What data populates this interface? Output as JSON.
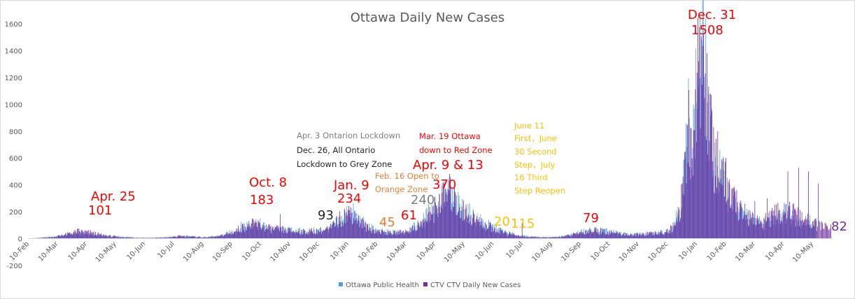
{
  "chart_data": {
    "type": "bar",
    "title": "Ottawa Daily New Cases",
    "xlabel": "",
    "ylabel": "",
    "ylim": [
      -200,
      1600
    ],
    "y_ticks": [
      "-200",
      "0",
      "200",
      "400",
      "600",
      "800",
      "1000",
      "1200",
      "1400",
      "1600"
    ],
    "x_ticks": [
      "10-Feb",
      "10-Mar",
      "10-Apr",
      "10-May",
      "10-Jun",
      "10-Jul",
      "10-Aug",
      "10-Sep",
      "10-Oct",
      "10-Nov",
      "10-Dec",
      "10-Jan",
      "10-Feb",
      "10-Mar",
      "10-Apr",
      "10-May",
      "10-Jun",
      "10-Jul",
      "10-Aug",
      "10-Sep",
      "10-Oct",
      "10-Nov",
      "10-Dec",
      "10-Jan",
      "10-Feb",
      "10-Mar",
      "10-Apr",
      "10-May"
    ],
    "grid": false,
    "legend_position": "bottom",
    "series": [
      {
        "name": "Ottawa Public Health",
        "color": "#5b9bd5",
        "profile": [
          [
            0,
            2
          ],
          [
            15,
            6
          ],
          [
            30,
            14
          ],
          [
            45,
            28
          ],
          [
            60,
            40
          ],
          [
            75,
            35
          ],
          [
            90,
            22
          ],
          [
            110,
            12
          ],
          [
            130,
            8
          ],
          [
            150,
            6
          ],
          [
            170,
            10
          ],
          [
            185,
            18
          ],
          [
            200,
            14
          ],
          [
            215,
            10
          ],
          [
            230,
            18
          ],
          [
            245,
            45
          ],
          [
            260,
            95
          ],
          [
            275,
            120
          ],
          [
            290,
            80
          ],
          [
            305,
            70
          ],
          [
            320,
            60
          ],
          [
            335,
            55
          ],
          [
            350,
            60
          ],
          [
            365,
            75
          ],
          [
            380,
            150
          ],
          [
            390,
            210
          ],
          [
            400,
            150
          ],
          [
            410,
            90
          ],
          [
            425,
            55
          ],
          [
            440,
            45
          ],
          [
            455,
            55
          ],
          [
            470,
            90
          ],
          [
            480,
            140
          ],
          [
            490,
            230
          ],
          [
            500,
            300
          ],
          [
            510,
            330
          ],
          [
            520,
            250
          ],
          [
            535,
            180
          ],
          [
            550,
            120
          ],
          [
            565,
            80
          ],
          [
            580,
            45
          ],
          [
            595,
            22
          ],
          [
            610,
            14
          ],
          [
            625,
            10
          ],
          [
            640,
            12
          ],
          [
            655,
            25
          ],
          [
            670,
            50
          ],
          [
            685,
            65
          ],
          [
            700,
            55
          ],
          [
            715,
            40
          ],
          [
            730,
            30
          ],
          [
            745,
            35
          ],
          [
            760,
            40
          ],
          [
            770,
            50
          ],
          [
            780,
            80
          ],
          [
            790,
            250
          ],
          [
            795,
            500
          ],
          [
            800,
            850
          ],
          [
            805,
            700
          ],
          [
            810,
            1100
          ],
          [
            815,
            1450
          ],
          [
            820,
            1300
          ],
          [
            825,
            800
          ],
          [
            830,
            600
          ],
          [
            840,
            450
          ],
          [
            850,
            320
          ],
          [
            860,
            220
          ],
          [
            870,
            170
          ],
          [
            880,
            130
          ],
          [
            890,
            110
          ],
          [
            900,
            150
          ],
          [
            910,
            180
          ],
          [
            920,
            200
          ],
          [
            930,
            150
          ],
          [
            940,
            130
          ],
          [
            950,
            120
          ]
        ]
      },
      {
        "name": "CTV CTV Daily New Cases",
        "color": "#7030a0",
        "profile": [
          [
            0,
            1
          ],
          [
            15,
            5
          ],
          [
            30,
            12
          ],
          [
            45,
            30
          ],
          [
            60,
            55
          ],
          [
            75,
            45
          ],
          [
            90,
            25
          ],
          [
            110,
            12
          ],
          [
            130,
            6
          ],
          [
            150,
            5
          ],
          [
            170,
            9
          ],
          [
            185,
            20
          ],
          [
            200,
            14
          ],
          [
            215,
            9
          ],
          [
            230,
            16
          ],
          [
            245,
            40
          ],
          [
            260,
            85
          ],
          [
            275,
            110
          ],
          [
            290,
            75
          ],
          [
            305,
            65
          ],
          [
            320,
            55
          ],
          [
            335,
            50
          ],
          [
            350,
            55
          ],
          [
            365,
            70
          ],
          [
            380,
            160
          ],
          [
            390,
            200
          ],
          [
            400,
            140
          ],
          [
            410,
            80
          ],
          [
            425,
            50
          ],
          [
            440,
            40
          ],
          [
            455,
            50
          ],
          [
            470,
            85
          ],
          [
            480,
            130
          ],
          [
            490,
            200
          ],
          [
            500,
            290
          ],
          [
            510,
            340
          ],
          [
            520,
            240
          ],
          [
            535,
            170
          ],
          [
            550,
            110
          ],
          [
            565,
            70
          ],
          [
            580,
            40
          ],
          [
            595,
            18
          ],
          [
            610,
            12
          ],
          [
            625,
            8
          ],
          [
            640,
            10
          ],
          [
            655,
            22
          ],
          [
            670,
            45
          ],
          [
            685,
            60
          ],
          [
            700,
            50
          ],
          [
            715,
            38
          ],
          [
            730,
            28
          ],
          [
            745,
            32
          ],
          [
            760,
            38
          ],
          [
            770,
            48
          ],
          [
            780,
            75
          ],
          [
            790,
            230
          ],
          [
            795,
            480
          ],
          [
            800,
            820
          ],
          [
            805,
            720
          ],
          [
            810,
            1050
          ],
          [
            815,
            1480
          ],
          [
            820,
            1350
          ],
          [
            825,
            820
          ],
          [
            830,
            620
          ],
          [
            840,
            460
          ],
          [
            850,
            330
          ],
          [
            860,
            230
          ],
          [
            870,
            180
          ],
          [
            880,
            140
          ],
          [
            890,
            120
          ],
          [
            900,
            160
          ],
          [
            910,
            200
          ],
          [
            920,
            220
          ],
          [
            930,
            170
          ],
          [
            940,
            140
          ],
          [
            950,
            110
          ],
          [
            960,
            90
          ],
          [
            970,
            82
          ]
        ],
        "spikes": [
          [
            305,
            183
          ],
          [
            372,
            93
          ],
          [
            390,
            234
          ],
          [
            400,
            170
          ],
          [
            452,
            45
          ],
          [
            470,
            61
          ],
          [
            490,
            240
          ],
          [
            508,
            370
          ],
          [
            580,
            20
          ],
          [
            598,
            115
          ],
          [
            693,
            79
          ],
          [
            815,
            1508
          ],
          [
            820,
            1230
          ],
          [
            828,
            950
          ],
          [
            835,
            800
          ],
          [
            845,
            600
          ],
          [
            880,
            280
          ],
          [
            895,
            300
          ],
          [
            920,
            500
          ],
          [
            933,
            530
          ],
          [
            945,
            500
          ],
          [
            957,
            410
          ],
          [
            965,
            120
          ]
        ]
      }
    ],
    "annotations": [
      {
        "text": "Apr. 25",
        "color": "#ff0000",
        "size": "big"
      },
      {
        "text": "101",
        "color": "#ff0000",
        "size": "big"
      },
      {
        "text": "Oct. 8",
        "color": "#ff0000",
        "size": "big"
      },
      {
        "text": "183",
        "color": "#ff0000",
        "size": "big"
      },
      {
        "text": "93",
        "color": "#262626",
        "size": "big"
      },
      {
        "text": "Jan. 9",
        "color": "#ff0000",
        "size": "big"
      },
      {
        "text": "234",
        "color": "#ff0000",
        "size": "big"
      },
      {
        "text": "Apr. 3 Ontarion Lockdown",
        "color": "#7f7f7f",
        "size": "small"
      },
      {
        "text": "Dec. 26, All Ontario",
        "color": "#262626",
        "size": "small"
      },
      {
        "text": "Lockdown to Grey Zone",
        "color": "#262626",
        "size": "small"
      },
      {
        "text": "Feb. 16 Open to",
        "color": "#ed7d31",
        "size": "small"
      },
      {
        "text": "Orange Zone",
        "color": "#ed7d31",
        "size": "small"
      },
      {
        "text": "45",
        "color": "#ed7d31",
        "size": "big"
      },
      {
        "text": "61",
        "color": "#ff0000",
        "size": "big"
      },
      {
        "text": "240",
        "color": "#7f7f7f",
        "size": "big"
      },
      {
        "text": "Mar. 19 Ottawa",
        "color": "#ff0000",
        "size": "small"
      },
      {
        "text": "down to Red Zone",
        "color": "#ff0000",
        "size": "small"
      },
      {
        "text": "Apr. 9 & 13",
        "color": "#ff0000",
        "size": "big"
      },
      {
        "text": "370",
        "color": "#ff0000",
        "size": "big"
      },
      {
        "text": "20",
        "color": "#ffc000",
        "size": "big"
      },
      {
        "text": "115",
        "color": "#ffc000",
        "size": "big"
      },
      {
        "text": "June 11",
        "color": "#ffc000",
        "size": "small"
      },
      {
        "text": "First，June",
        "color": "#ffc000",
        "size": "small"
      },
      {
        "text": "30 Second",
        "color": "#ffc000",
        "size": "small"
      },
      {
        "text": "Step，July",
        "color": "#ffc000",
        "size": "small"
      },
      {
        "text": "16 Third",
        "color": "#ffc000",
        "size": "small"
      },
      {
        "text": "Step Reopen",
        "color": "#ffc000",
        "size": "small"
      },
      {
        "text": "79",
        "color": "#ff0000",
        "size": "big"
      },
      {
        "text": "Dec. 31",
        "color": "#ff0000",
        "size": "big"
      },
      {
        "text": "1508",
        "color": "#ff0000",
        "size": "big"
      },
      {
        "text": "82",
        "color": "#7030a0",
        "size": "big"
      }
    ]
  }
}
